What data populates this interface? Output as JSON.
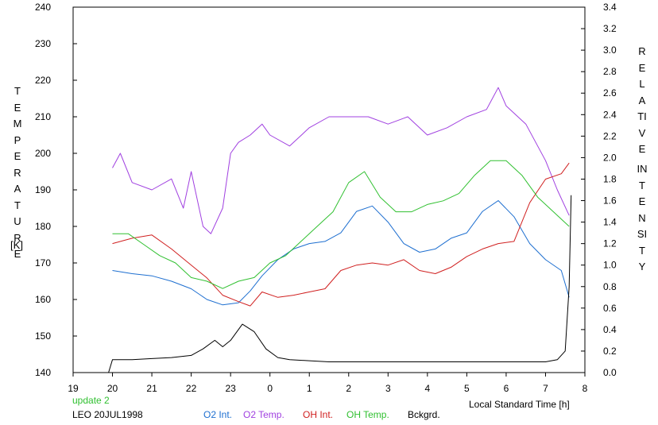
{
  "chart_data": {
    "type": "line",
    "ylabel_left_lines": [
      "TEMPERATURE",
      "[K]"
    ],
    "ylabel_right_lines": [
      "RELATIVE",
      "INTENSITY"
    ],
    "xlabel": "Local Standard Time [h]",
    "x_ticks": [
      "19",
      "20",
      "21",
      "22",
      "23",
      "0",
      "1",
      "2",
      "3",
      "4",
      "5",
      "6",
      "7",
      "8"
    ],
    "x_range": [
      19,
      32
    ],
    "y_left_ticks": [
      "140",
      "150",
      "160",
      "170",
      "180",
      "190",
      "200",
      "210",
      "220",
      "230",
      "240"
    ],
    "y_left_range": [
      140,
      240
    ],
    "y_right_ticks": [
      "0.0",
      "0.2",
      "0.4",
      "0.6",
      "0.8",
      "1.0",
      "1.2",
      "1.4",
      "1.6",
      "1.8",
      "2.0",
      "2.2",
      "2.4",
      "2.6",
      "2.8",
      "3.0",
      "3.2",
      "3.4"
    ],
    "y_right_range": [
      0,
      3.4
    ],
    "grid": false,
    "legend_position": "bottom",
    "series": [
      {
        "name": "O2 Int.",
        "axis": "right",
        "color": "#1e6fd0",
        "x": [
          20.0,
          20.5,
          21.0,
          21.5,
          22.0,
          22.4,
          22.8,
          23.2,
          23.5,
          23.8,
          24.2,
          24.6,
          25.0,
          25.4,
          25.8,
          26.2,
          26.6,
          27.0,
          27.4,
          27.8,
          28.2,
          28.6,
          29.0,
          29.4,
          29.8,
          30.2,
          30.6,
          31.0,
          31.4,
          31.6
        ],
        "y": [
          0.95,
          0.92,
          0.9,
          0.85,
          0.78,
          0.68,
          0.63,
          0.65,
          0.76,
          0.9,
          1.05,
          1.15,
          1.2,
          1.22,
          1.3,
          1.5,
          1.55,
          1.4,
          1.2,
          1.12,
          1.15,
          1.25,
          1.3,
          1.5,
          1.6,
          1.45,
          1.2,
          1.05,
          0.95,
          0.7
        ]
      },
      {
        "name": "O2 Temp.",
        "axis": "left",
        "color": "#a040e0",
        "x": [
          20.0,
          20.2,
          20.5,
          21.0,
          21.5,
          21.8,
          22.0,
          22.3,
          22.5,
          22.8,
          23.0,
          23.2,
          23.5,
          23.8,
          24.0,
          24.5,
          25.0,
          25.5,
          26.0,
          26.5,
          27.0,
          27.5,
          28.0,
          28.5,
          29.0,
          29.5,
          29.8,
          30.0,
          30.5,
          31.0,
          31.3,
          31.6
        ],
        "y": [
          196,
          200,
          192,
          190,
          193,
          185,
          195,
          180,
          178,
          185,
          200,
          203,
          205,
          208,
          205,
          202,
          207,
          210,
          210,
          210,
          208,
          210,
          205,
          207,
          210,
          212,
          218,
          213,
          208,
          198,
          190,
          183
        ]
      },
      {
        "name": "OH Int.",
        "axis": "right",
        "color": "#d02020",
        "x": [
          20.0,
          20.5,
          21.0,
          21.5,
          22.0,
          22.4,
          22.8,
          23.2,
          23.5,
          23.8,
          24.2,
          24.6,
          25.0,
          25.4,
          25.8,
          26.2,
          26.6,
          27.0,
          27.4,
          27.8,
          28.2,
          28.6,
          29.0,
          29.4,
          29.8,
          30.2,
          30.6,
          31.0,
          31.4,
          31.6
        ],
        "y": [
          1.2,
          1.25,
          1.28,
          1.15,
          1.0,
          0.88,
          0.72,
          0.66,
          0.62,
          0.75,
          0.7,
          0.72,
          0.75,
          0.78,
          0.95,
          1.0,
          1.02,
          1.0,
          1.05,
          0.95,
          0.92,
          0.98,
          1.08,
          1.15,
          1.2,
          1.22,
          1.58,
          1.8,
          1.85,
          1.95
        ]
      },
      {
        "name": "OH Temp.",
        "axis": "left",
        "color": "#30c030",
        "x": [
          20.0,
          20.4,
          20.8,
          21.2,
          21.6,
          22.0,
          22.4,
          22.8,
          23.2,
          23.6,
          24.0,
          24.4,
          24.8,
          25.2,
          25.6,
          26.0,
          26.4,
          26.8,
          27.2,
          27.6,
          28.0,
          28.4,
          28.8,
          29.2,
          29.6,
          30.0,
          30.4,
          30.8,
          31.2,
          31.6
        ],
        "y": [
          178,
          178,
          175,
          172,
          170,
          166,
          165,
          163,
          165,
          166,
          170,
          172,
          176,
          180,
          184,
          192,
          195,
          188,
          184,
          184,
          186,
          187,
          189,
          194,
          198,
          198,
          194,
          188,
          184,
          180
        ]
      },
      {
        "name": "Bckgrd.",
        "axis": "right",
        "color": "#000000",
        "x": [
          19.9,
          20.0,
          20.5,
          21.0,
          21.5,
          22.0,
          22.3,
          22.6,
          22.8,
          23.0,
          23.3,
          23.6,
          23.9,
          24.2,
          24.5,
          25.0,
          25.5,
          26.0,
          26.5,
          27.0,
          27.5,
          28.0,
          28.5,
          29.0,
          29.5,
          30.0,
          30.5,
          31.0,
          31.3,
          31.5,
          31.6,
          31.65
        ],
        "y": [
          0.0,
          0.12,
          0.12,
          0.13,
          0.14,
          0.16,
          0.22,
          0.3,
          0.24,
          0.3,
          0.45,
          0.38,
          0.22,
          0.14,
          0.12,
          0.11,
          0.1,
          0.1,
          0.1,
          0.1,
          0.1,
          0.1,
          0.1,
          0.1,
          0.1,
          0.1,
          0.1,
          0.1,
          0.12,
          0.2,
          0.8,
          1.65
        ]
      }
    ]
  },
  "footer": {
    "update": "update 2",
    "station": "LEO 20JUL1998"
  },
  "colors": {
    "update": "#30c030",
    "station": "#000000"
  }
}
